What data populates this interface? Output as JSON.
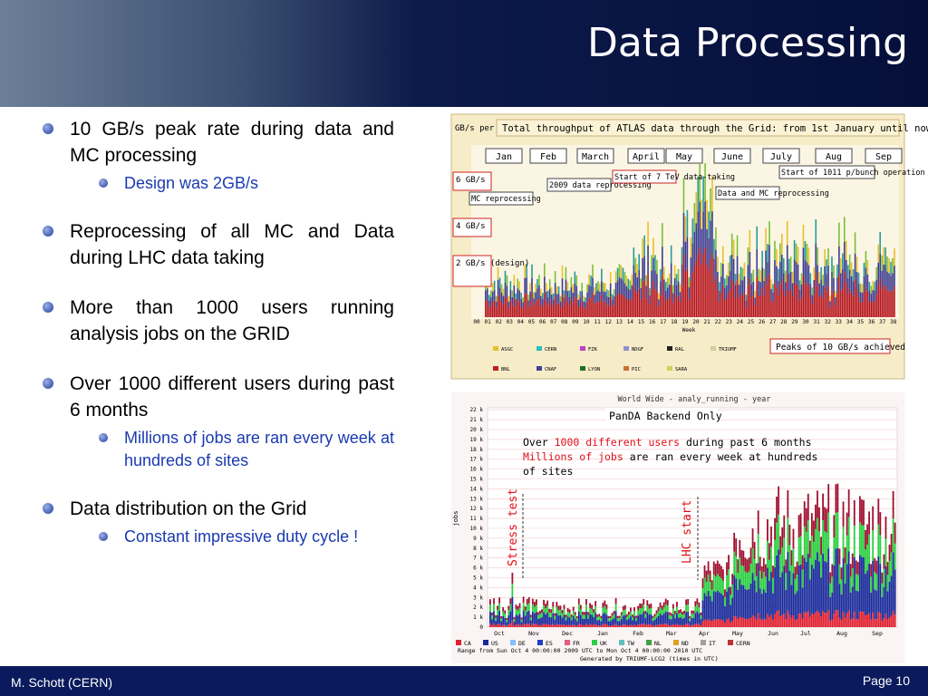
{
  "header": {
    "title": "Data Processing"
  },
  "bullets": [
    {
      "text": "10 GB/s peak rate during data and MC processing",
      "sub": [
        "Design was 2GB/s"
      ]
    },
    {
      "text": "Reprocessing of all MC and Data during LHC data taking",
      "sub": []
    },
    {
      "text": "More than 1000 users running analysis jobs on the GRID",
      "sub": []
    },
    {
      "text": "Over 1000 different users during past 6 months",
      "sub": [
        "Millions of jobs are ran every week at hundreds of sites"
      ]
    },
    {
      "text": "Data distribution on the Grid",
      "sub": [
        "Constant impressive duty cycle !"
      ]
    }
  ],
  "figure1": {
    "y_label": "GB/s per day",
    "title": "Total throughput of ATLAS data through the Grid: from 1st January until now",
    "months": [
      "Jan",
      "Feb",
      "March",
      "April",
      "May",
      "June",
      "July",
      "Aug",
      "Sep"
    ],
    "levels": [
      "6 GB/s",
      "4 GB/s",
      "2 GB/s (design)"
    ],
    "annotations": [
      "MC reprocessing",
      "2009 data reprocessing",
      "Start of 7 TeV data-taking",
      "Data and MC reprocessing",
      "Start of 1011 p/bunch operation"
    ],
    "weeks": [
      "00",
      "01",
      "02",
      "03",
      "04",
      "05",
      "06",
      "07",
      "08",
      "09",
      "10",
      "11",
      "12",
      "13",
      "14",
      "15",
      "16",
      "17",
      "18",
      "19",
      "20",
      "21",
      "22",
      "23",
      "24",
      "25",
      "26",
      "27",
      "28",
      "29",
      "30",
      "31",
      "32",
      "33",
      "34",
      "35",
      "36",
      "37",
      "38"
    ],
    "x_label": "Week",
    "note": "Peaks of 10 GB/s achieved",
    "legend": [
      "ASGC",
      "CERN",
      "FZK",
      "NDGF",
      "RAL",
      "TRIUMF",
      "BNL",
      "CNAF",
      "LYON",
      "PIC",
      "SARA"
    ]
  },
  "figure2": {
    "title": "World Wide - analy_running - year",
    "subtitle": "PanDA Backend Only",
    "y_label": "jobs",
    "yticks": [
      "0",
      "1 k",
      "2 k",
      "3 k",
      "4 k",
      "5 k",
      "6 k",
      "7 k",
      "8 k",
      "9 k",
      "10 k",
      "11 k",
      "12 k",
      "13 k",
      "14 k",
      "15 k",
      "16 k",
      "17 k",
      "18 k",
      "19 k",
      "20 k",
      "21 k",
      "22 k"
    ],
    "months": [
      "Oct",
      "Nov",
      "Dec",
      "Jan",
      "Feb",
      "Mar",
      "Apr",
      "May",
      "Jun",
      "Jul",
      "Aug",
      "Sep"
    ],
    "annotations": [
      "Stress test",
      "LHC start"
    ],
    "callout": [
      [
        {
          "t": "Over ",
          "red": false
        },
        {
          "t": "1000 different users",
          "red": true
        },
        {
          "t": " during past 6 months",
          "red": false
        }
      ],
      [
        {
          "t": "Millions of jobs",
          "red": true
        },
        {
          "t": " are ran every week at hundreds",
          "red": false
        }
      ],
      [
        {
          "t": "of sites",
          "red": false
        }
      ]
    ],
    "legend": [
      "CA",
      "US",
      "DE",
      "ES",
      "FR",
      "UK",
      "TW",
      "NL",
      "ND",
      "IT",
      "CERN"
    ],
    "range": "Range from Sun Oct  4 00:00:00 2009 UTC  to Mon Oct  4 00:00:00 2010 UTC",
    "generated": "Generated by TRIUMF-LCG2 (times in UTC)"
  },
  "footer": {
    "author": "M. Schott (CERN)",
    "page": "Page 10"
  }
}
